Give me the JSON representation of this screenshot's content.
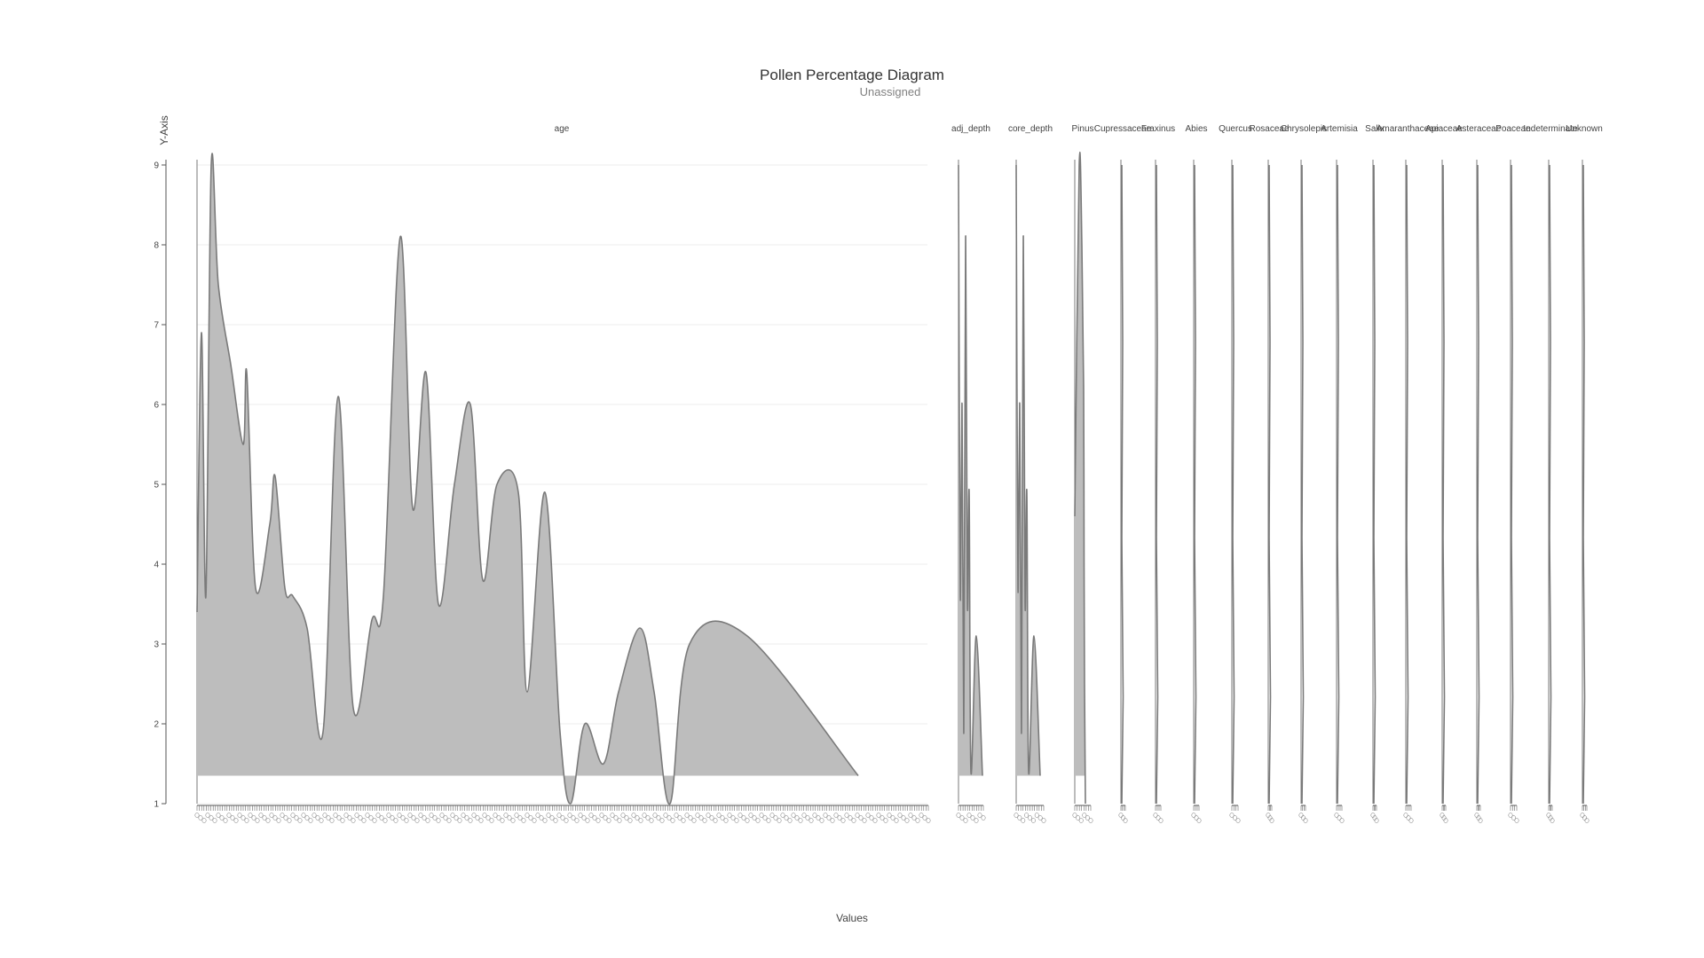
{
  "chart_data": {
    "type": "area",
    "title": "Pollen Percentage Diagram",
    "subtitle": "Unassigned",
    "xlabel": "Values",
    "ylabel": "Y-Axis",
    "ylim": [
      1,
      9
    ],
    "yticks": [
      "1",
      "2",
      "3",
      "4",
      "5",
      "6",
      "7",
      "8",
      "9"
    ],
    "grid": true,
    "fill_color": "#bdbdbd",
    "line_color": "#7a7a7a",
    "grid_color": "#ececec",
    "panels": [
      {
        "name": "age",
        "values": [
          3.4,
          6.9,
          3.6,
          9.0,
          7.5,
          6.5,
          5.5,
          6.4,
          3.7,
          4.5,
          5.1,
          3.7,
          3.6,
          3.2,
          1.9,
          6.1,
          2.2,
          3.3,
          3.6,
          8.1,
          4.7,
          6.4,
          3.5,
          5.0,
          6.0,
          3.8,
          5.0,
          4.9,
          2.4,
          4.9,
          1.9,
          1.0,
          2.0,
          1.5,
          2.4,
          3.2,
          2.4,
          1.0,
          3.0,
          3.1,
          1.35
        ]
      },
      {
        "name": "adj_depth",
        "values": [
          9.0,
          3.6,
          6.0,
          1.9,
          8.1,
          3.5,
          4.9,
          1.4,
          3.1,
          1.35
        ]
      },
      {
        "name": "core_depth",
        "values": [
          9.0,
          3.7,
          6.0,
          1.9,
          8.1,
          3.5,
          4.9,
          1.4,
          3.1,
          1.35
        ]
      },
      {
        "name": "Pinus",
        "values": [
          4.6,
          9.0,
          8.0,
          6.2,
          4.0,
          2.5,
          1.0
        ]
      },
      {
        "name": "Cupressaceae",
        "values": []
      },
      {
        "name": "Fraxinus",
        "values": []
      },
      {
        "name": "Abies",
        "values": []
      },
      {
        "name": "Quercus",
        "values": []
      },
      {
        "name": "Rosaceae",
        "values": []
      },
      {
        "name": "Chrysolepis",
        "values": []
      },
      {
        "name": "Artemisia",
        "values": []
      },
      {
        "name": "Salix",
        "values": []
      },
      {
        "name": "Amaranthaceae",
        "values": []
      },
      {
        "name": "Apiaceae",
        "values": []
      },
      {
        "name": "Asteraceae",
        "values": []
      },
      {
        "name": "Poaceae",
        "values": []
      },
      {
        "name": "Indeterminate",
        "values": []
      },
      {
        "name": "Unknown",
        "values": []
      }
    ]
  }
}
